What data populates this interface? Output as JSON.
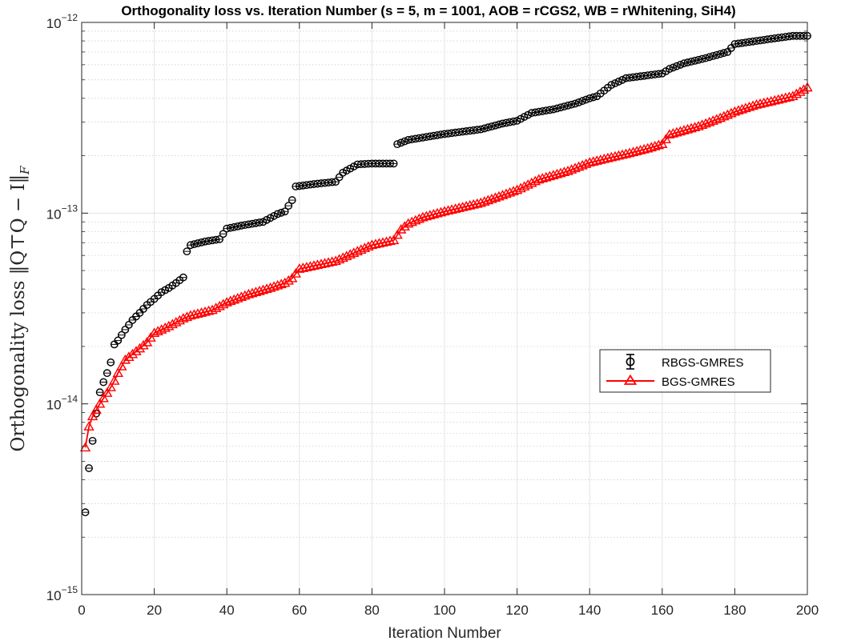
{
  "chart_data": {
    "type": "line",
    "title": "Orthogonality loss vs. Iteration Number (s = 5, m = 1001, AOB = rCGS2, WB = rWhitening, SiH4)",
    "xlabel": "Iteration Number",
    "ylabel": "Orthogonality loss ‖Q⊤Q − I‖F",
    "xlim": [
      0,
      200
    ],
    "ylim": [
      1e-15,
      1e-12
    ],
    "yscale": "log",
    "grid": true,
    "minor_grid": true,
    "legend_position": "right-middle",
    "x_ticks": [
      0,
      20,
      40,
      60,
      80,
      100,
      120,
      140,
      160,
      180,
      200
    ],
    "x_tick_labels": [
      "0",
      "20",
      "40",
      "60",
      "80",
      "100",
      "120",
      "140",
      "160",
      "180",
      "200"
    ],
    "y_ticks": [
      1e-15,
      1e-14,
      1e-13,
      1e-12
    ],
    "y_tick_labels": [
      {
        "base": "10",
        "exp": "−15"
      },
      {
        "base": "10",
        "exp": "−14"
      },
      {
        "base": "10",
        "exp": "−13"
      },
      {
        "base": "10",
        "exp": "−12"
      }
    ],
    "series": [
      {
        "name": "RBGS-GMRES",
        "color": "#000000",
        "marker": "circle",
        "line": "none",
        "anchors": [
          [
            1,
            2.7e-15
          ],
          [
            2,
            4.6e-15
          ],
          [
            3,
            6.4e-15
          ],
          [
            4,
            8.9e-15
          ],
          [
            5,
            1.15e-14
          ],
          [
            6,
            1.3e-14
          ],
          [
            7,
            1.45e-14
          ],
          [
            8,
            1.65e-14
          ],
          [
            9,
            2.05e-14
          ],
          [
            10,
            2.15e-14
          ],
          [
            12,
            2.45e-14
          ],
          [
            14,
            2.75e-14
          ],
          [
            16,
            3e-14
          ],
          [
            18,
            3.3e-14
          ],
          [
            20,
            3.55e-14
          ],
          [
            22,
            3.85e-14
          ],
          [
            24,
            4.05e-14
          ],
          [
            26,
            4.3e-14
          ],
          [
            28,
            4.6e-14
          ],
          [
            29,
            6.3e-14
          ],
          [
            30,
            6.8e-14
          ],
          [
            34,
            7.1e-14
          ],
          [
            38,
            7.3e-14
          ],
          [
            40,
            8.3e-14
          ],
          [
            44,
            8.6e-14
          ],
          [
            50,
            9e-14
          ],
          [
            54,
            9.9e-14
          ],
          [
            56,
            1.02e-13
          ],
          [
            58,
            1.17e-13
          ],
          [
            59,
            1.38e-13
          ],
          [
            64,
            1.42e-13
          ],
          [
            70,
            1.46e-13
          ],
          [
            72,
            1.63e-13
          ],
          [
            76,
            1.8e-13
          ],
          [
            80,
            1.82e-13
          ],
          [
            86,
            1.82e-13
          ],
          [
            87,
            2.3e-13
          ],
          [
            90,
            2.42e-13
          ],
          [
            100,
            2.6e-13
          ],
          [
            110,
            2.75e-13
          ],
          [
            116,
            2.95e-13
          ],
          [
            120,
            3.05e-13
          ],
          [
            124,
            3.35e-13
          ],
          [
            130,
            3.5e-13
          ],
          [
            136,
            3.75e-13
          ],
          [
            140,
            4e-13
          ],
          [
            142,
            4.1e-13
          ],
          [
            146,
            4.7e-13
          ],
          [
            150,
            5.1e-13
          ],
          [
            160,
            5.4e-13
          ],
          [
            162,
            5.7e-13
          ],
          [
            166,
            6.1e-13
          ],
          [
            172,
            6.5e-13
          ],
          [
            178,
            7e-13
          ],
          [
            180,
            7.7e-13
          ],
          [
            190,
            8.2e-13
          ],
          [
            196,
            8.5e-13
          ],
          [
            200,
            8.5e-13
          ]
        ]
      },
      {
        "name": "BGS-GMRES",
        "color": "#ff0000",
        "marker": "triangle",
        "line": "solid",
        "anchors": [
          [
            1,
            5.9e-15
          ],
          [
            2,
            7.6e-15
          ],
          [
            3,
            8.6e-15
          ],
          [
            4,
            9.3e-15
          ],
          [
            5,
            1e-14
          ],
          [
            6,
            1.07e-14
          ],
          [
            7,
            1.14e-14
          ],
          [
            8,
            1.22e-14
          ],
          [
            9,
            1.32e-14
          ],
          [
            10,
            1.45e-14
          ],
          [
            12,
            1.7e-14
          ],
          [
            14,
            1.82e-14
          ],
          [
            16,
            1.95e-14
          ],
          [
            18,
            2.1e-14
          ],
          [
            20,
            2.35e-14
          ],
          [
            24,
            2.55e-14
          ],
          [
            28,
            2.8e-14
          ],
          [
            30,
            2.9e-14
          ],
          [
            36,
            3.1e-14
          ],
          [
            40,
            3.4e-14
          ],
          [
            46,
            3.75e-14
          ],
          [
            52,
            4.05e-14
          ],
          [
            56,
            4.3e-14
          ],
          [
            58,
            4.55e-14
          ],
          [
            60,
            5.1e-14
          ],
          [
            70,
            5.6e-14
          ],
          [
            76,
            6.3e-14
          ],
          [
            80,
            6.8e-14
          ],
          [
            86,
            7.2e-14
          ],
          [
            88,
            8.2e-14
          ],
          [
            90,
            8.8e-14
          ],
          [
            94,
            9.5e-14
          ],
          [
            100,
            1.02e-13
          ],
          [
            110,
            1.13e-13
          ],
          [
            120,
            1.32e-13
          ],
          [
            126,
            1.5e-13
          ],
          [
            134,
            1.66e-13
          ],
          [
            140,
            1.84e-13
          ],
          [
            146,
            1.96e-13
          ],
          [
            150,
            2.04e-13
          ],
          [
            156,
            2.18e-13
          ],
          [
            160,
            2.3e-13
          ],
          [
            162,
            2.58e-13
          ],
          [
            170,
            2.85e-13
          ],
          [
            176,
            3.15e-13
          ],
          [
            180,
            3.4e-13
          ],
          [
            186,
            3.7e-13
          ],
          [
            190,
            3.85e-13
          ],
          [
            196,
            4.1e-13
          ],
          [
            200,
            4.55e-13
          ]
        ]
      }
    ]
  }
}
